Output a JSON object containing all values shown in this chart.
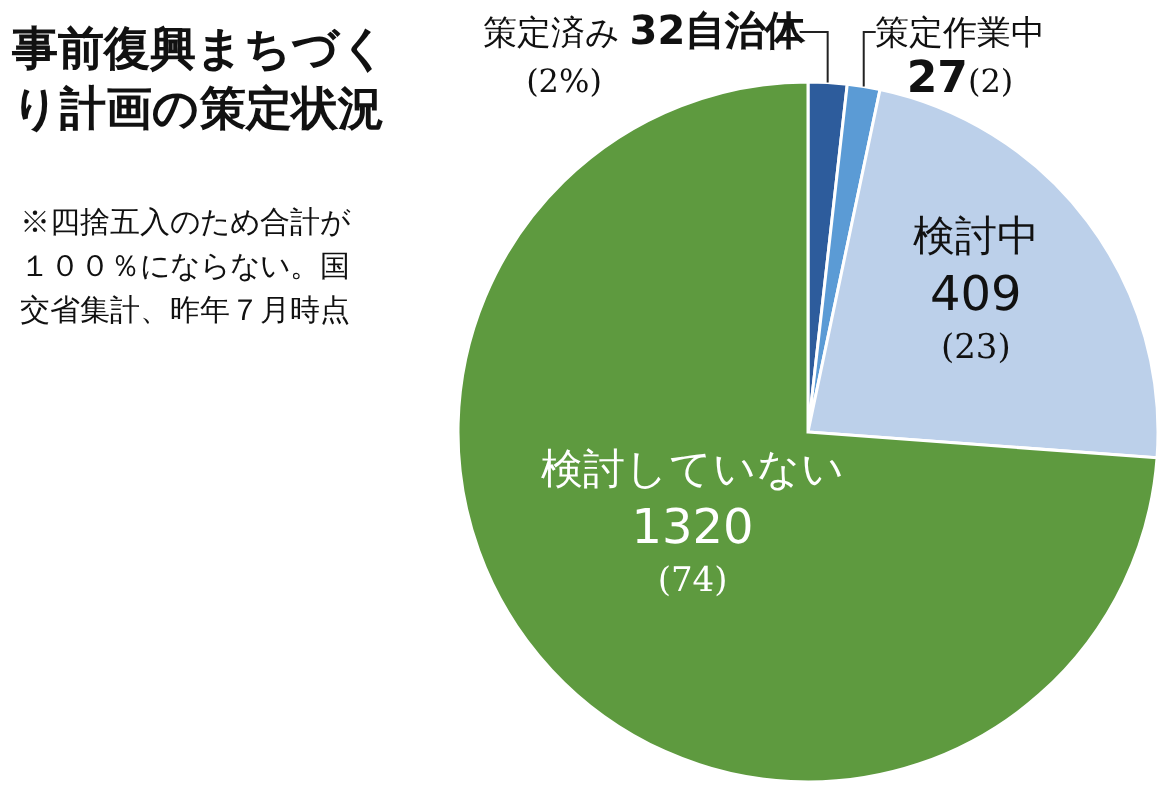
{
  "chart_data": {
    "type": "pie",
    "title": "事前復興まちづくり計画の策定状況",
    "categories": [
      "策定済み",
      "策定作業中",
      "検討中",
      "検討していない"
    ],
    "values": [
      32,
      27,
      409,
      1320
    ],
    "value_labels": [
      "32自治体 (2%)",
      "27(2)",
      "409 (23)",
      "1320 (74)"
    ],
    "colors": [
      "#2d5c9c",
      "#5b9bd5",
      "#bcd0ea",
      "#5e9a3f"
    ],
    "annotations": [
      "※四捨五入のため合計が１００％にならない。国交省集計、昨年７月時点"
    ]
  }
}
